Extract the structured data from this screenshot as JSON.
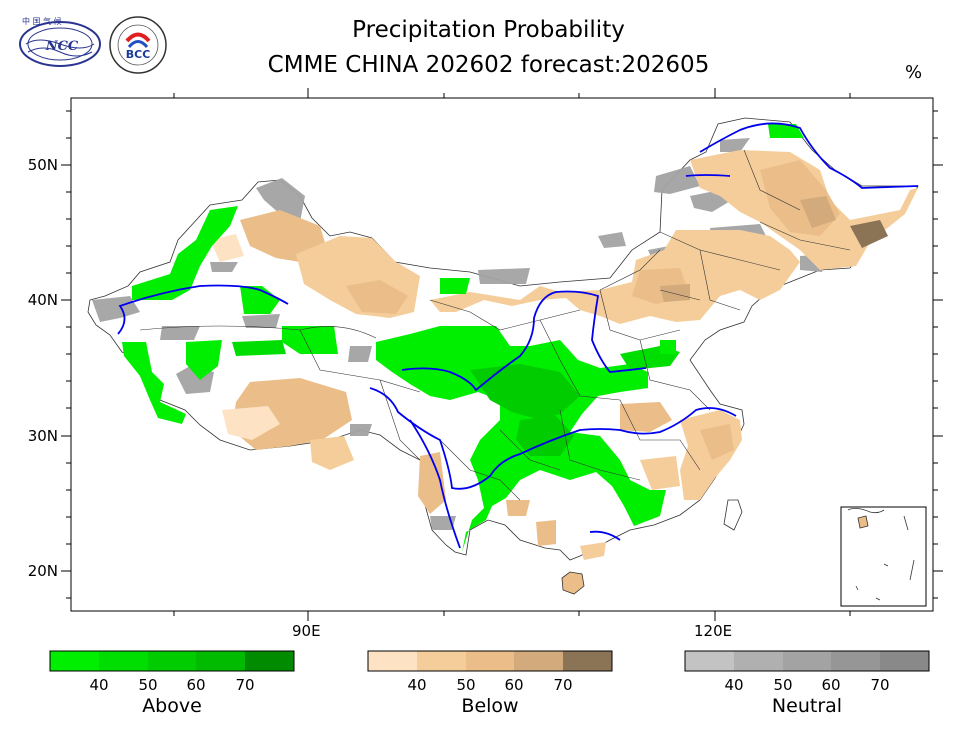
{
  "title": {
    "line1": "Precipitation Probability",
    "line2": "CMME CHINA 202602 forecast:202605",
    "unit": "%"
  },
  "logos": {
    "ncc": "NCC",
    "bcc": "BCC"
  },
  "axes": {
    "lat_labels": [
      "50N",
      "40N",
      "30N",
      "20N"
    ],
    "lon_labels": [
      "90E",
      "120E"
    ]
  },
  "legend": {
    "above": {
      "name": "Above",
      "ticks": [
        "40",
        "50",
        "60",
        "70"
      ],
      "colors": [
        "#00ee00",
        "#00dd00",
        "#00cc00",
        "#00bb00",
        "#008b00"
      ]
    },
    "below": {
      "name": "Below",
      "ticks": [
        "40",
        "50",
        "60",
        "70"
      ],
      "colors": [
        "#fde3c3",
        "#f5cd9a",
        "#ebbd88",
        "#d2aa7c",
        "#8b7355"
      ]
    },
    "neutral": {
      "name": "Neutral",
      "ticks": [
        "40",
        "50",
        "60",
        "70"
      ],
      "colors": [
        "#c3c3c3",
        "#b0b0b0",
        "#a3a3a3",
        "#969696",
        "#898989"
      ]
    }
  }
}
